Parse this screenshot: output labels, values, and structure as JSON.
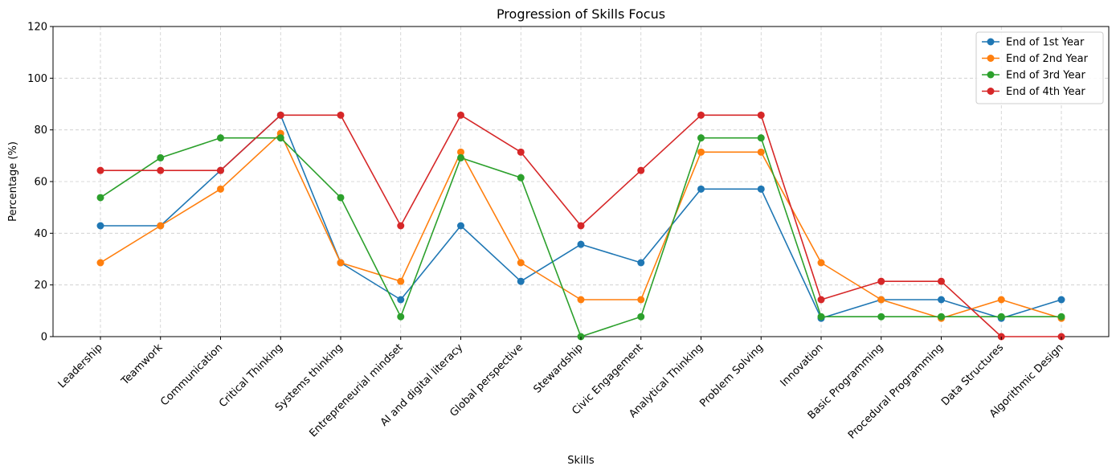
{
  "chart_data": {
    "type": "line",
    "title": "Progression of Skills Focus",
    "xlabel": "Skills",
    "ylabel": "Percentage (%)",
    "ylim": [
      0,
      120
    ],
    "yticks": [
      0,
      20,
      40,
      60,
      80,
      100,
      120
    ],
    "grid": true,
    "legend_position": "top-right",
    "categories": [
      "Leadership",
      "Teamwork",
      "Communication",
      "Critical Thinking",
      "Systems thinking",
      "Entrepreneurial mindset",
      "AI and digital literacy",
      "Global perspective",
      "Stewardship",
      "Civic Engagement",
      "Analytical Thinking",
      "Problem Solving",
      "Innovation",
      "Basic Programming",
      "Procedural Programming",
      "Data Structures",
      "Algorithmic Design"
    ],
    "series": [
      {
        "name": "End of 1st Year",
        "color": "#1f77b4",
        "values": [
          42.9,
          42.9,
          64.3,
          85.7,
          28.6,
          14.3,
          42.9,
          21.4,
          35.7,
          28.6,
          57.1,
          57.1,
          7.1,
          14.3,
          14.3,
          7.1,
          14.3
        ]
      },
      {
        "name": "End of 2nd Year",
        "color": "#ff7f0e",
        "values": [
          28.6,
          42.9,
          57.1,
          78.6,
          28.6,
          21.4,
          71.4,
          28.6,
          14.3,
          14.3,
          71.4,
          71.4,
          28.6,
          14.3,
          7.1,
          14.3,
          7.1
        ]
      },
      {
        "name": "End of 3rd Year",
        "color": "#2ca02c",
        "values": [
          53.8,
          69.2,
          76.9,
          76.9,
          53.8,
          7.7,
          69.2,
          61.5,
          0,
          7.7,
          76.9,
          76.9,
          7.7,
          7.7,
          7.7,
          7.7,
          7.7
        ]
      },
      {
        "name": "End of 4th Year",
        "color": "#d62728",
        "values": [
          64.3,
          64.3,
          64.3,
          85.7,
          85.7,
          42.9,
          85.7,
          71.4,
          42.9,
          64.3,
          85.7,
          85.7,
          14.3,
          21.4,
          21.4,
          0,
          0
        ]
      }
    ]
  }
}
